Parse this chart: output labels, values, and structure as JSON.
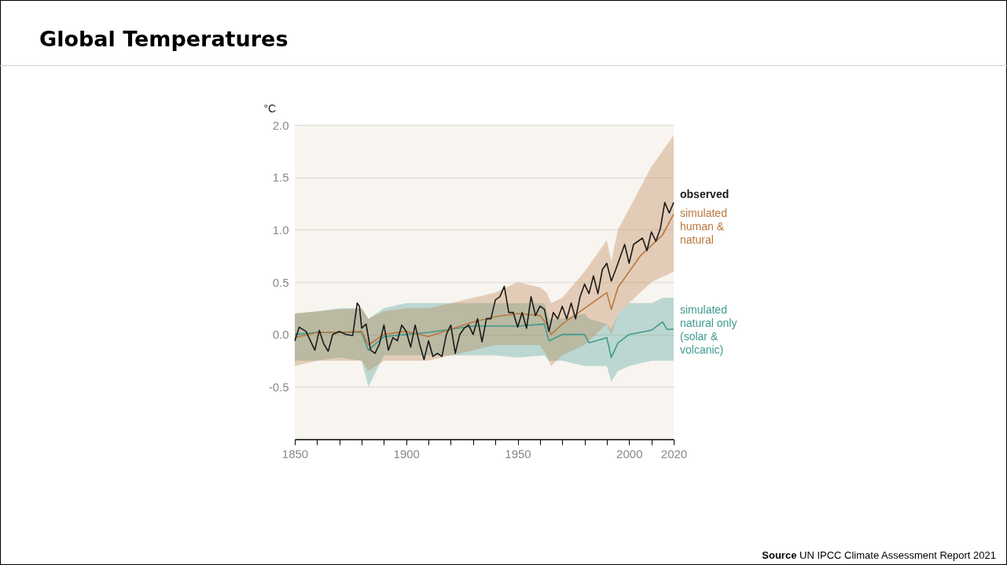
{
  "chart_data": {
    "type": "line",
    "title": "Global Temperatures",
    "ylabel": "°C",
    "annotations": [
      "Source UN IPCC Climate Assessment Report 2021"
    ],
    "xlim": [
      1850,
      2020
    ],
    "xticks": [
      1850,
      {
        "value": 1860,
        "label": null
      },
      {
        "value": 1870,
        "label": null
      },
      {
        "value": 1880,
        "label": null
      },
      {
        "value": 1890,
        "label": null
      },
      1900,
      {
        "value": 1910,
        "label": null
      },
      {
        "value": 1920,
        "label": null
      },
      {
        "value": 1930,
        "label": null
      },
      {
        "value": 1940,
        "label": null
      },
      1950,
      {
        "value": 1960,
        "label": null
      },
      {
        "value": 1970,
        "label": null
      },
      {
        "value": 1980,
        "label": null
      },
      {
        "value": 1990,
        "label": null
      },
      2000,
      {
        "value": 2010,
        "label": null
      },
      2020
    ],
    "ylim": [
      -1,
      2
    ],
    "yticks": [
      -0.5,
      {
        "value": 0,
        "label": "0.0"
      },
      0.5,
      {
        "value": 1,
        "label": "1.0"
      },
      1.5,
      {
        "value": 2,
        "label": "2.0"
      }
    ],
    "grid": "y",
    "line_style": "solid",
    "series": [
      {
        "name": "observed",
        "color": "#1a1a1a",
        "x": [
          1850,
          1852,
          1855,
          1857,
          1859,
          1861,
          1863,
          1865,
          1867,
          1870,
          1873,
          1876,
          1878,
          1879,
          1880,
          1882,
          1884,
          1886,
          1888,
          1890,
          1892,
          1894,
          1896,
          1898,
          1900,
          1902,
          1904,
          1906,
          1908,
          1910,
          1912,
          1914,
          1916,
          1918,
          1920,
          1922,
          1924,
          1926,
          1928,
          1930,
          1932,
          1934,
          1936,
          1938,
          1940,
          1942,
          1944,
          1946,
          1948,
          1950,
          1952,
          1954,
          1956,
          1958,
          1960,
          1962,
          1964,
          1966,
          1968,
          1970,
          1972,
          1974,
          1976,
          1978,
          1980,
          1982,
          1984,
          1986,
          1988,
          1990,
          1992,
          1994,
          1996,
          1998,
          2000,
          2002,
          2004,
          2006,
          2008,
          2010,
          2012,
          2014,
          2016,
          2018,
          2020
        ],
        "values": [
          -0.06,
          0.07,
          0.03,
          -0.06,
          -0.15,
          0.04,
          -0.09,
          -0.16,
          0.0,
          0.03,
          0.0,
          -0.01,
          0.3,
          0.27,
          0.06,
          0.1,
          -0.15,
          -0.18,
          -0.09,
          0.09,
          -0.15,
          -0.03,
          -0.06,
          0.09,
          0.03,
          -0.12,
          0.09,
          -0.09,
          -0.24,
          -0.06,
          -0.21,
          -0.18,
          -0.21,
          0.0,
          0.09,
          -0.18,
          0.0,
          0.06,
          0.09,
          0.0,
          0.15,
          -0.07,
          0.15,
          0.15,
          0.33,
          0.36,
          0.46,
          0.21,
          0.21,
          0.07,
          0.21,
          0.06,
          0.36,
          0.18,
          0.27,
          0.24,
          0.03,
          0.21,
          0.15,
          0.27,
          0.15,
          0.3,
          0.15,
          0.36,
          0.48,
          0.39,
          0.56,
          0.39,
          0.62,
          0.68,
          0.51,
          0.62,
          0.74,
          0.86,
          0.68,
          0.86,
          0.89,
          0.92,
          0.8,
          0.98,
          0.89,
          1.01,
          1.26,
          1.16,
          1.26
        ]
      },
      {
        "name": "simulated human & natural",
        "color": "#b9783e",
        "x": [
          1850,
          1860,
          1870,
          1880,
          1883,
          1890,
          1900,
          1910,
          1920,
          1930,
          1940,
          1950,
          1960,
          1963,
          1965,
          1970,
          1980,
          1990,
          1992,
          1995,
          2000,
          2005,
          2010,
          2015,
          2020
        ],
        "values": [
          -0.03,
          0.02,
          0.02,
          0.03,
          -0.1,
          0.0,
          0.03,
          -0.02,
          0.05,
          0.12,
          0.17,
          0.2,
          0.18,
          0.1,
          0.0,
          0.1,
          0.25,
          0.4,
          0.24,
          0.45,
          0.6,
          0.75,
          0.85,
          0.95,
          1.15
        ],
        "lower": [
          -0.3,
          -0.25,
          -0.25,
          -0.25,
          -0.35,
          -0.25,
          -0.25,
          -0.25,
          -0.2,
          -0.15,
          -0.1,
          -0.1,
          -0.1,
          -0.2,
          -0.3,
          -0.2,
          -0.1,
          0.1,
          0.0,
          0.2,
          0.3,
          0.4,
          0.5,
          0.55,
          0.6
        ],
        "upper": [
          0.2,
          0.22,
          0.24,
          0.25,
          0.15,
          0.22,
          0.25,
          0.25,
          0.3,
          0.35,
          0.4,
          0.5,
          0.45,
          0.4,
          0.3,
          0.35,
          0.6,
          0.9,
          0.7,
          1.0,
          1.2,
          1.4,
          1.6,
          1.75,
          1.9
        ]
      },
      {
        "name": "simulated natural only (solar & volcanic)",
        "color": "#3e9a8f",
        "x": [
          1850,
          1860,
          1870,
          1880,
          1883,
          1890,
          1900,
          1910,
          1920,
          1930,
          1940,
          1950,
          1962,
          1964,
          1970,
          1980,
          1982,
          1990,
          1992,
          1995,
          2000,
          2010,
          2015,
          2017,
          2020
        ],
        "values": [
          0.0,
          0.02,
          0.02,
          0.02,
          -0.15,
          -0.02,
          0.0,
          0.02,
          0.05,
          0.08,
          0.08,
          0.08,
          0.1,
          -0.06,
          0.0,
          0.0,
          -0.08,
          -0.03,
          -0.22,
          -0.08,
          0.0,
          0.04,
          0.12,
          0.05,
          0.05
        ],
        "lower": [
          -0.25,
          -0.25,
          -0.22,
          -0.25,
          -0.5,
          -0.2,
          -0.2,
          -0.2,
          -0.2,
          -0.2,
          -0.2,
          -0.22,
          -0.2,
          -0.25,
          -0.25,
          -0.3,
          -0.3,
          -0.3,
          -0.45,
          -0.35,
          -0.3,
          -0.25,
          -0.25,
          -0.25,
          -0.25
        ],
        "upper": [
          0.2,
          0.22,
          0.25,
          0.25,
          0.15,
          0.25,
          0.3,
          0.3,
          0.3,
          0.3,
          0.3,
          0.3,
          0.3,
          0.15,
          0.15,
          0.2,
          0.15,
          0.1,
          0.05,
          0.2,
          0.3,
          0.3,
          0.35,
          0.35,
          0.35
        ]
      }
    ]
  }
}
